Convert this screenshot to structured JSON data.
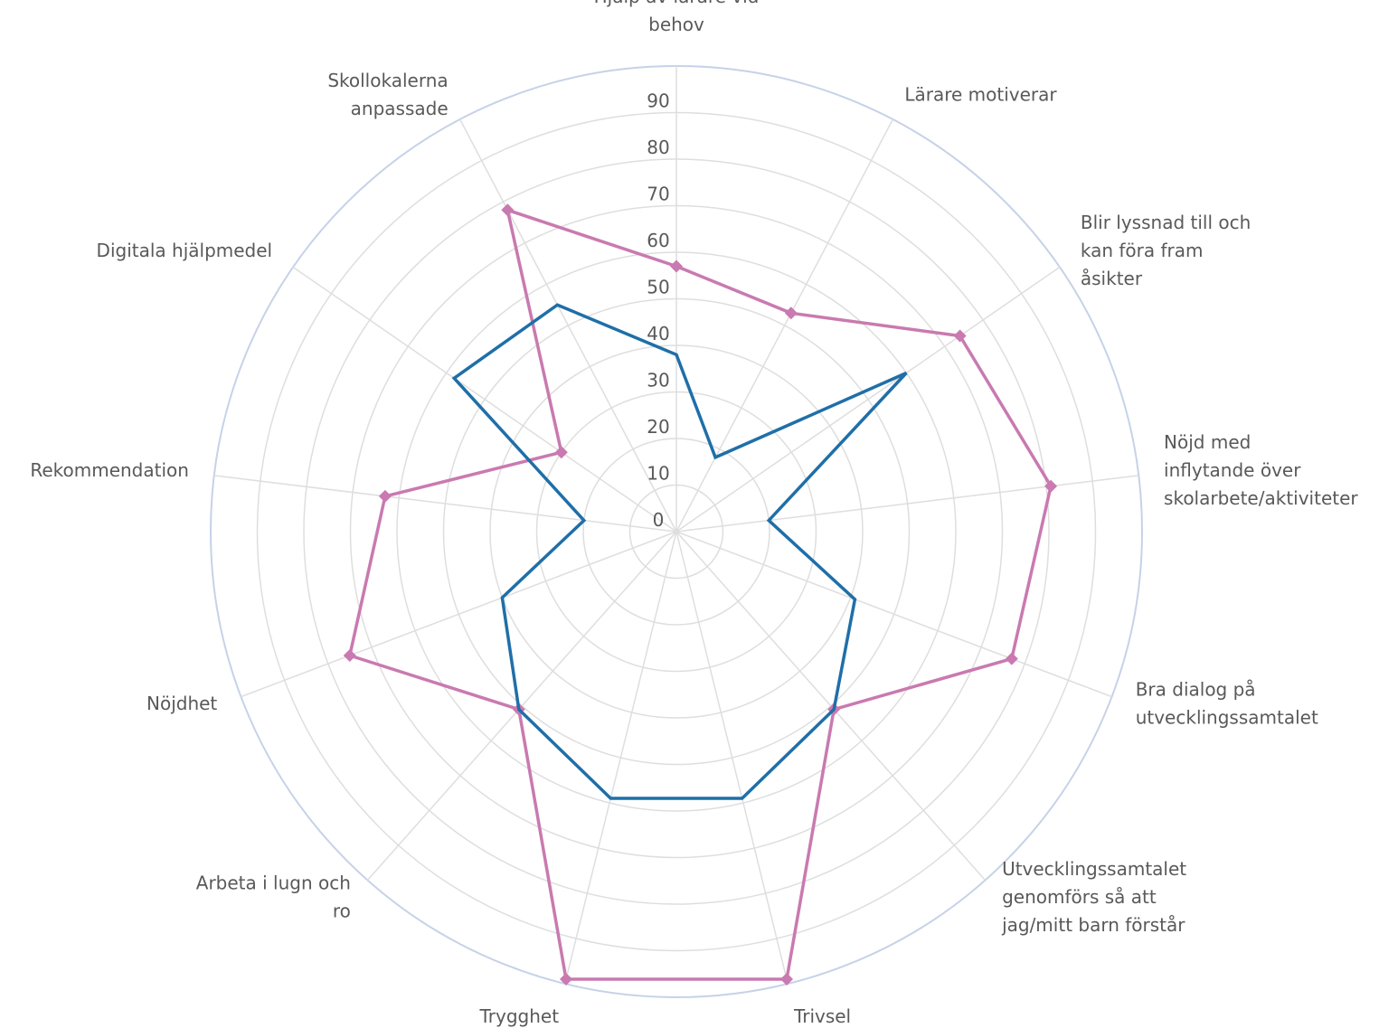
{
  "chart_data": {
    "type": "radar",
    "title": "",
    "categories": [
      "Hjälp av lärare vid behov",
      "Lärare motiverar",
      "Blir lyssnad till och kan föra fram åsikter",
      "Nöjd med inflytande över skolarbete/aktiviteter",
      "Bra dialog på utvecklingssamtalet",
      "Utvecklingssamtalet genomförs så att jag/mitt barn förstår",
      "Trivsel",
      "Trygghet",
      "Arbeta i lugn och ro",
      "Nöjdhet",
      "Rekommendation",
      "Digitala hjälpmedel",
      "Skollokalerna anpassade"
    ],
    "label_lines": [
      [
        "Hjälp av lärare vid",
        "behov"
      ],
      [
        "Lärare motiverar"
      ],
      [
        "Blir lyssnad till och",
        "kan föra fram",
        "åsikter"
      ],
      [
        "Nöjd med",
        "inflytande över",
        "skolarbete/aktiviteter"
      ],
      [
        "Bra dialog på",
        "utvecklingssamtalet"
      ],
      [
        "Utvecklingssamtalet",
        "genomförs så att",
        "jag/mitt barn förstår"
      ],
      [
        "Trivsel"
      ],
      [
        "Trygghet"
      ],
      [
        "Arbeta i lugn och",
        "ro"
      ],
      [
        "Nöjdhet"
      ],
      [
        "Rekommendation"
      ],
      [
        "Digitala hjälpmedel"
      ],
      [
        "Skollokalerna",
        "anpassade"
      ]
    ],
    "ticks": [
      0,
      10,
      20,
      30,
      40,
      50,
      60,
      70,
      80,
      90
    ],
    "rmax": 100,
    "grid": true,
    "legend": "none",
    "series": [
      {
        "color": "#c97ab0",
        "marker": "diamond",
        "values": [
          57,
          53,
          74,
          81,
          77,
          51,
          99,
          99,
          51,
          75,
          63,
          30,
          78
        ]
      },
      {
        "color": "#1f6fa8",
        "marker": "none",
        "values": [
          38,
          18,
          60,
          20,
          41,
          51,
          59,
          59,
          51,
          40,
          20,
          58,
          55
        ]
      }
    ],
    "colors": {
      "grid": "#dedede",
      "outer_ring": "#c6d2e8",
      "text": "#595959"
    }
  }
}
